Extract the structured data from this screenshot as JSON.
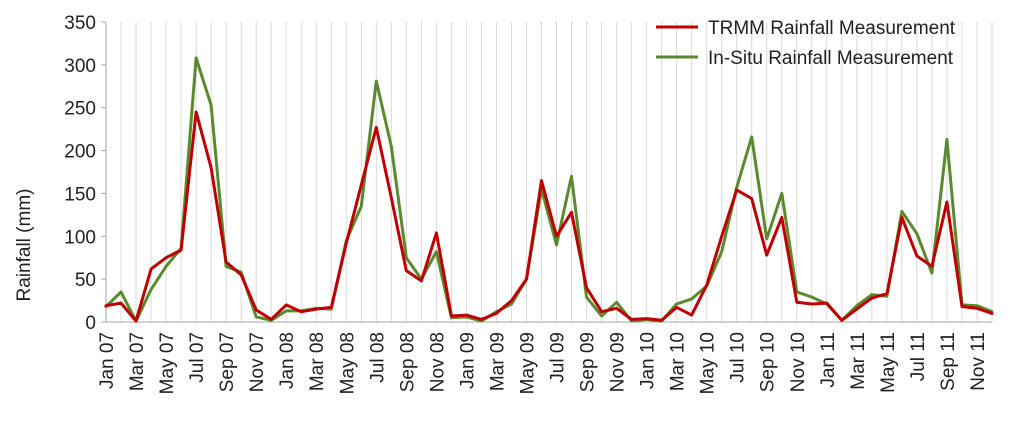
{
  "chart_data": {
    "type": "line",
    "title": "",
    "xlabel": "",
    "ylabel": "Rainfall (mm)",
    "ylim": [
      0,
      350
    ],
    "yticks": [
      0,
      50,
      100,
      150,
      200,
      250,
      300,
      350
    ],
    "grid": "vertical",
    "legend_position": "top-right",
    "categories": [
      "Jan 07",
      "Feb 07",
      "Mar 07",
      "Apr 07",
      "May 07",
      "Jun 07",
      "Jul 07",
      "Aug 07",
      "Sep 07",
      "Oct 07",
      "Nov 07",
      "Dec 07",
      "Jan 08",
      "Feb 08",
      "Mar 08",
      "Apr 08",
      "May 08",
      "Jun 08",
      "Jul 08",
      "Aug 08",
      "Sep 08",
      "Oct 08",
      "Nov 08",
      "Dec 08",
      "Jan 09",
      "Feb 09",
      "Mar 09",
      "Apr 09",
      "May 09",
      "Jun 09",
      "Jul 09",
      "Aug 09",
      "Sep 09",
      "Oct 09",
      "Nov 09",
      "Dec 09",
      "Jan 10",
      "Feb 10",
      "Mar 10",
      "Apr 10",
      "May 10",
      "Jun 10",
      "Jul 10",
      "Aug 10",
      "Sep 10",
      "Oct 10",
      "Nov 10",
      "Dec 10",
      "Jan 11",
      "Feb 11",
      "Mar 11",
      "Apr 11",
      "May 11",
      "Jun 11",
      "Jul 11",
      "Aug 11",
      "Sep 11",
      "Oct 11",
      "Nov 11",
      "Dec 11"
    ],
    "tick_labels": [
      "Jan 07",
      "Mar 07",
      "May 07",
      "Jul 07",
      "Sep 07",
      "Nov 07",
      "Jan 08",
      "Mar 08",
      "May 08",
      "Jul 08",
      "Sep 08",
      "Nov 08",
      "Jan 09",
      "Mar 09",
      "May 09",
      "Jul 09",
      "Sep 09",
      "Nov 09",
      "Jan 10",
      "Mar 10",
      "May 10",
      "Jul 10",
      "Sep 10",
      "Nov 10",
      "Jan 11",
      "Mar 11",
      "May 11",
      "Jul 11",
      "Sep 11",
      "Nov 11"
    ],
    "series": [
      {
        "name": "TRMM Rainfall Measurement",
        "color": "#c00000",
        "values": [
          19,
          22,
          1,
          62,
          75,
          84,
          245,
          180,
          70,
          55,
          14,
          3,
          20,
          12,
          15,
          17,
          92,
          160,
          227,
          145,
          60,
          48,
          104,
          7,
          8,
          3,
          10,
          25,
          50,
          165,
          100,
          128,
          40,
          12,
          16,
          3,
          4,
          2,
          17,
          8,
          43,
          100,
          154,
          144,
          78,
          122,
          23,
          21,
          22,
          2,
          15,
          28,
          33,
          122,
          77,
          65,
          140,
          18,
          16,
          10
        ]
      },
      {
        "name": "In-Situ Rainfall Measurement",
        "color": "#5a8a2e",
        "values": [
          18,
          35,
          1,
          38,
          65,
          86,
          308,
          253,
          65,
          58,
          6,
          2,
          13,
          13,
          16,
          15,
          95,
          135,
          281,
          205,
          75,
          50,
          82,
          5,
          6,
          1,
          12,
          21,
          50,
          155,
          90,
          170,
          29,
          7,
          23,
          1,
          3,
          1,
          21,
          27,
          42,
          82,
          157,
          216,
          97,
          150,
          35,
          29,
          21,
          2,
          19,
          32,
          30,
          129,
          103,
          57,
          213,
          20,
          19,
          12
        ]
      }
    ]
  }
}
